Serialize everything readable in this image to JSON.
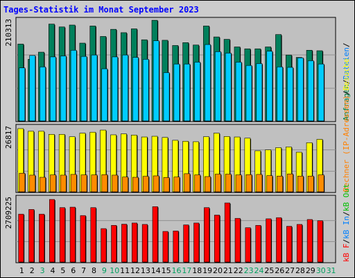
{
  "chart_data": {
    "type": "bar",
    "title": "Tages-Statistik im Monat September 2023",
    "categories": [
      "1",
      "2",
      "3",
      "4",
      "5",
      "6",
      "7",
      "8",
      "9",
      "10",
      "11",
      "12",
      "13",
      "14",
      "15",
      "16",
      "17",
      "18",
      "19",
      "20",
      "21",
      "22",
      "23",
      "24",
      "25",
      "26",
      "27",
      "28",
      "29",
      "30",
      "31"
    ],
    "weekend_days": [
      "3",
      "9",
      "10",
      "16",
      "17",
      "23",
      "24",
      "30",
      "31"
    ],
    "panels": [
      {
        "max_label": "210313",
        "max_value": 210313,
        "right_legend": [
          {
            "text": "Anfragen",
            "color": "#008040"
          },
          {
            "text": "/",
            "color": "#000000"
          },
          {
            "text": "Dateien",
            "color": "#0080ff"
          },
          {
            "text": "/",
            "color": "#000000"
          }
        ],
        "series": [
          {
            "name": "Anfragen",
            "color": "#00805c",
            "values": [
              163000,
              131000,
              146000,
              205000,
              199000,
              203000,
              165000,
              201000,
              179000,
              194000,
              187000,
              195000,
              172000,
              213000,
              171000,
              160000,
              166000,
              161000,
              201000,
              178000,
              173000,
              157000,
              153000,
              153000,
              157000,
              183000,
              140000,
              135000,
              150000,
              149000
            ]
          },
          {
            "name": "Dateien",
            "color": "#00ccff",
            "values": [
              113000,
              139000,
              115000,
              136000,
              138000,
              150000,
              137000,
              140000,
              111000,
              136000,
              140000,
              135000,
              131000,
              170000,
              103000,
              121000,
              121000,
              125000,
              162000,
              147000,
              144000,
              125000,
              118000,
              122000,
              148000,
              115000,
              114000,
              134000,
              128000,
              121000
            ]
          }
        ]
      },
      {
        "max_label": "26817",
        "max_value": 26817,
        "right_legend": [
          {
            "text": "Rechner (IP-Adressen)",
            "color": "#ff8000"
          },
          {
            "text": "/",
            "color": "#000000"
          },
          {
            "text": "Besuche",
            "color": "#ffff00"
          }
        ],
        "series": [
          {
            "name": "Besuche",
            "color": "#ffff00",
            "values": [
              26817,
              25700,
              25700,
              24400,
              24400,
              23400,
              24900,
              25300,
              26200,
              24200,
              24600,
              24100,
              23300,
              23600,
              23100,
              21900,
              21500,
              21300,
              23400,
              24900,
              23500,
              23300,
              22800,
              17500,
              17900,
              18800,
              19100,
              16900,
              20900,
              22300
            ]
          },
          {
            "name": "Rechner (IP-Adressen)",
            "color": "#ff8c00",
            "values": [
              8100,
              7300,
              6400,
              7400,
              7300,
              7600,
              7400,
              7400,
              7500,
              7300,
              6500,
              6400,
              6800,
              7000,
              6300,
              6500,
              7900,
              7400,
              6700,
              7700,
              7700,
              7400,
              7500,
              7600,
              7100,
              6900,
              7800,
              6900,
              6900,
              7400
            ]
          }
        ]
      },
      {
        "max_label": "2709225",
        "max_value": 2709225,
        "right_legend": [
          {
            "text": "kB F",
            "color": "#ff0000"
          },
          {
            "text": "/",
            "color": "#000000"
          },
          {
            "text": "kB In",
            "color": "#0080ff"
          },
          {
            "text": "/",
            "color": "#000000"
          },
          {
            "text": "kB Out",
            "color": "#00c000"
          }
        ],
        "series": [
          {
            "name": "kB F",
            "color": "#ff0000",
            "values": [
              2080000,
              2280000,
              2080000,
              2709225,
              2360000,
              2380000,
              2020000,
              2360000,
              1460000,
              1600000,
              1650000,
              1700000,
              1640000,
              2400000,
              1340000,
              1360000,
              1620000,
              1700000,
              2360000,
              2040000,
              2560000,
              1900000,
              1500000,
              1600000,
              1880000,
              1930000,
              1560000,
              1640000,
              1850000,
              1800000
            ]
          }
        ]
      }
    ]
  }
}
